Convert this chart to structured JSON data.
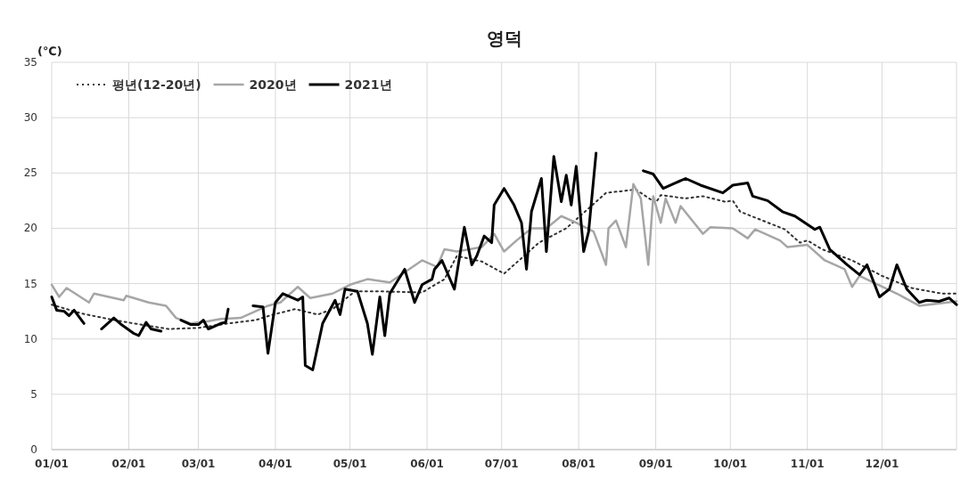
{
  "chart_data": {
    "type": "line",
    "title": "영덕",
    "ylabel": "(℃)",
    "xlim": [
      "--01-01",
      "--12-31"
    ],
    "ylim": [
      0,
      35
    ],
    "yticks": [
      0,
      5,
      10,
      15,
      20,
      25,
      30,
      35
    ],
    "xticks": [
      {
        "value": "--01-01",
        "label": "01/01"
      },
      {
        "value": "--02-01",
        "label": "02/01"
      },
      {
        "value": "--03-01",
        "label": "03/01"
      },
      {
        "value": "--04-01",
        "label": "04/01"
      },
      {
        "value": "--05-01",
        "label": "05/01"
      },
      {
        "value": "--06-01",
        "label": "06/01"
      },
      {
        "value": "--07-01",
        "label": "07/01"
      },
      {
        "value": "--08-01",
        "label": "08/01"
      },
      {
        "value": "--09-01",
        "label": "09/01"
      },
      {
        "value": "--10-01",
        "label": "10/01"
      },
      {
        "value": "--11-01",
        "label": "11/01"
      },
      {
        "value": "--12-01",
        "label": "12/01"
      }
    ],
    "grid": true,
    "legend": "top left",
    "series": [
      {
        "name": "평년(12-20년)",
        "color": "#333333",
        "line_style": "dotted",
        "x": [
          "--01-01",
          "--01-13",
          "--01-24",
          "--02-03",
          "--02-17",
          "--03-01",
          "--03-13",
          "--03-24",
          "--03-31",
          "--04-09",
          "--04-18",
          "--04-24",
          "--05-03",
          "--05-13",
          "--05-30",
          "--06-08",
          "--06-13",
          "--06-23",
          "--07-02",
          "--07-16",
          "--07-27",
          "--08-12",
          "--08-24",
          "--09-01",
          "--09-03",
          "--09-13",
          "--09-20",
          "--09-29",
          "--10-02",
          "--10-05",
          "--10-14",
          "--10-23",
          "--10-29",
          "--11-01",
          "--11-07",
          "--11-19",
          "--12-01",
          "--12-13",
          "--12-25",
          "--12-31"
        ],
        "values": [
          13.1,
          12.3,
          11.8,
          11.4,
          10.9,
          11.0,
          11.4,
          11.7,
          12.2,
          12.7,
          12.2,
          12.7,
          14.3,
          14.3,
          14.2,
          15.4,
          17.5,
          17.0,
          15.9,
          18.7,
          20.0,
          23.2,
          23.5,
          22.3,
          23.0,
          22.7,
          22.9,
          22.4,
          22.5,
          21.5,
          20.7,
          19.9,
          18.7,
          18.9,
          18.1,
          17.1,
          15.7,
          14.6,
          14.1,
          14.1
        ]
      },
      {
        "name": "2020년",
        "color": "#a6a6a6",
        "line_style": "solid",
        "x": [
          "--01-01",
          "--01-04",
          "--01-07",
          "--01-16",
          "--01-18",
          "--01-30",
          "--01-31",
          "--02-09",
          "--02-16",
          "--02-20",
          "--02-26",
          "--03-05",
          "--03-10",
          "--03-18",
          "--03-29",
          "--04-03",
          "--04-10",
          "--04-15",
          "--04-24",
          "--05-01",
          "--05-08",
          "--05-17",
          "--05-30",
          "--06-05",
          "--06-08",
          "--06-13",
          "--06-23",
          "--06-28",
          "--07-02",
          "--07-07",
          "--07-13",
          "--07-19",
          "--07-25",
          "--07-31",
          "--08-07",
          "--08-12",
          "--08-13",
          "--08-16",
          "--08-20",
          "--08-23",
          "--08-26",
          "--08-29",
          "--08-31",
          "--09-03",
          "--09-05",
          "--09-09",
          "--09-11",
          "--09-20",
          "--09-23",
          "--10-02",
          "--10-08",
          "--10-11",
          "--10-21",
          "--10-24",
          "--11-01",
          "--11-08",
          "--11-16",
          "--11-19",
          "--11-22",
          "--12-07",
          "--12-16",
          "--12-31"
        ],
        "values": [
          14.9,
          13.8,
          14.6,
          13.3,
          14.1,
          13.5,
          13.9,
          13.3,
          13.0,
          11.9,
          11.4,
          11.6,
          11.8,
          11.9,
          13.0,
          13.3,
          14.7,
          13.7,
          14.1,
          14.9,
          15.4,
          15.1,
          17.1,
          16.5,
          18.1,
          17.9,
          18.3,
          19.5,
          17.9,
          18.9,
          20.0,
          20.0,
          21.1,
          20.5,
          19.7,
          16.7,
          20.0,
          20.7,
          18.3,
          24.0,
          22.7,
          16.7,
          22.9,
          20.5,
          22.7,
          20.5,
          22.0,
          19.5,
          20.1,
          20.0,
          19.1,
          19.9,
          18.9,
          18.3,
          18.5,
          17.1,
          16.3,
          14.7,
          15.7,
          14.1,
          13.0,
          13.4
        ]
      },
      {
        "name": "2021년",
        "color": "#000000",
        "line_style": "solid",
        "x": [
          "--01-01",
          "--01-03",
          "--01-06",
          "--01-08",
          "--01-10",
          "--01-14"
        ],
        "values": [
          13.8,
          12.6,
          12.5,
          12.1,
          12.6,
          11.4
        ]
      },
      {
        "color": "#000000",
        "line_style": "solid",
        "x": [
          "--01-21",
          "--01-26",
          "--01-29",
          "--02-03",
          "--02-05",
          "--02-08",
          "--02-10",
          "--02-14"
        ],
        "values": [
          10.9,
          11.9,
          11.3,
          10.5,
          10.3,
          11.5,
          10.9,
          10.7
        ]
      },
      {
        "color": "#000000",
        "line_style": "solid",
        "x": [
          "--02-22",
          "--02-26",
          "--03-01",
          "--03-03",
          "--03-05",
          "--03-10",
          "--03-12",
          "--03-13"
        ],
        "values": [
          11.7,
          11.3,
          11.3,
          11.7,
          10.9,
          11.4,
          11.5,
          12.7
        ]
      },
      {
        "color": "#000000",
        "line_style": "solid",
        "x": [
          "--03-23",
          "--03-27",
          "--03-29",
          "--04-01",
          "--04-04",
          "--04-10",
          "--04-12",
          "--04-13",
          "--04-16",
          "--04-20",
          "--04-25",
          "--04-27",
          "--04-29",
          "--05-04",
          "--05-08",
          "--05-10",
          "--05-13",
          "--05-15",
          "--05-17",
          "--05-23",
          "--05-27",
          "--05-30",
          "--06-03",
          "--06-04",
          "--06-07",
          "--06-12",
          "--06-16",
          "--06-19",
          "--06-21",
          "--06-24",
          "--06-27",
          "--06-28",
          "--07-02",
          "--07-06",
          "--07-09",
          "--07-11",
          "--07-13",
          "--07-17",
          "--07-19",
          "--07-22",
          "--07-25",
          "--07-27",
          "--07-29",
          "--07-31",
          "--08-03",
          "--08-05",
          "--08-08"
        ],
        "values": [
          13.0,
          12.9,
          8.7,
          13.3,
          14.1,
          13.5,
          13.8,
          7.6,
          7.2,
          11.4,
          13.5,
          12.2,
          14.5,
          14.3,
          11.4,
          8.6,
          13.8,
          10.3,
          14.1,
          16.3,
          13.3,
          14.9,
          15.4,
          16.3,
          17.1,
          14.5,
          20.1,
          16.7,
          17.5,
          19.3,
          18.7,
          22.1,
          23.6,
          22.1,
          20.5,
          16.3,
          21.5,
          24.5,
          17.9,
          26.5,
          22.4,
          24.8,
          22.1,
          25.6,
          17.9,
          19.7,
          26.8
        ]
      },
      {
        "color": "#000000",
        "line_style": "solid",
        "x": [
          "--08-27",
          "--08-31",
          "--09-04",
          "--09-09",
          "--09-13",
          "--09-19",
          "--09-28",
          "--10-02",
          "--10-08",
          "--10-10",
          "--10-16",
          "--10-22",
          "--10-27",
          "--11-04",
          "--11-06",
          "--11-10",
          "--11-17",
          "--11-22",
          "--11-25",
          "--11-30",
          "--12-04",
          "--12-07",
          "--12-11",
          "--12-16",
          "--12-19",
          "--12-24",
          "--12-28",
          "--12-31"
        ],
        "values": [
          25.2,
          24.9,
          23.6,
          24.1,
          24.5,
          23.9,
          23.2,
          23.9,
          24.1,
          22.9,
          22.5,
          21.5,
          21.1,
          19.9,
          20.1,
          18.1,
          16.7,
          15.8,
          16.7,
          13.8,
          14.5,
          16.7,
          14.5,
          13.3,
          13.5,
          13.4,
          13.7,
          13.1
        ]
      }
    ]
  }
}
